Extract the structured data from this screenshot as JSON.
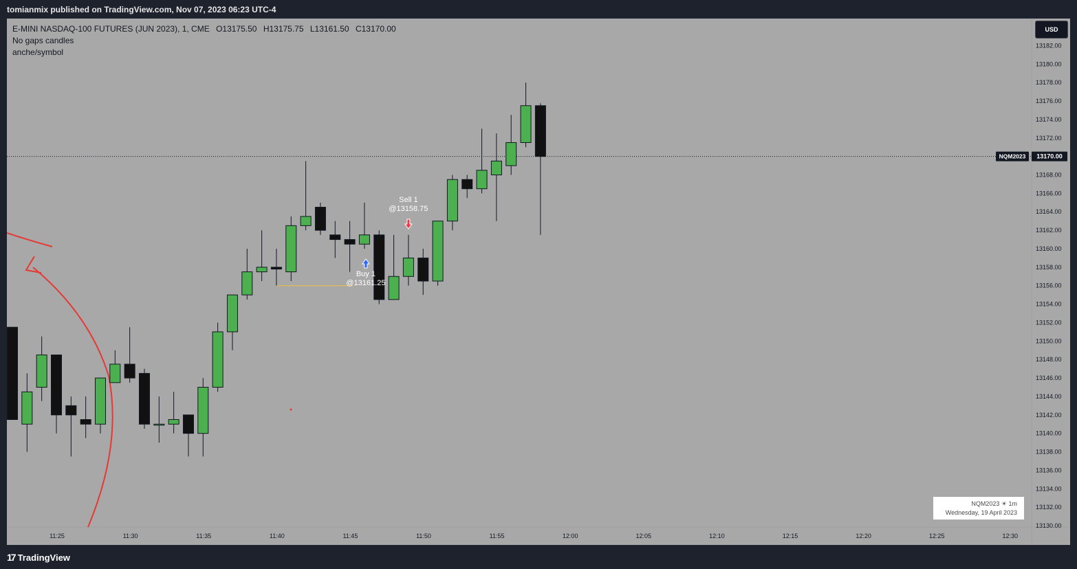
{
  "publisher_line": "tomianmix published on TradingView.com, Nov 07, 2023 06:23 UTC-4",
  "legend": {
    "symbol_line": "E-MINI NASDAQ-100 FUTURES (JUN 2023), 1, CME",
    "open": "O13175.50",
    "high": "H13175.75",
    "low": "L13161.50",
    "close": "C13170.00",
    "indicator_1": "No gaps candles",
    "indicator_2": "anche/symbol"
  },
  "currency_button": "USD",
  "last_price": {
    "symbol_tag": "NQM2023",
    "value": "13170.00",
    "price": 13170.0
  },
  "info_box": {
    "line1": "NQM2023 ☀ 1m",
    "line2": "Wednesday, 19 April 2023"
  },
  "footer_brand": "TradingView",
  "colors": {
    "background": "#1e222d",
    "plot_bg": "#a8a8a8",
    "up_candle": "#4caf50",
    "down_candle": "#111111",
    "annotation": "#e53935",
    "buy_arrow": "#2962ff",
    "sell_arrow": "#f23645",
    "position_line": "#f0c040"
  },
  "chart_data": {
    "type": "candlestick",
    "title": "E-MINI NASDAQ-100 FUTURES (JUN 2023), 1, CME",
    "xlabel": "",
    "ylabel": "",
    "ylim": [
      13130,
      13183
    ],
    "y_ticks": [
      "13130.00",
      "13132.00",
      "13134.00",
      "13136.00",
      "13138.00",
      "13140.00",
      "13142.00",
      "13144.00",
      "13146.00",
      "13148.00",
      "13150.00",
      "13152.00",
      "13154.00",
      "13156.00",
      "13158.00",
      "13160.00",
      "13162.00",
      "13164.00",
      "13166.00",
      "13168.00",
      "13170.00",
      "13172.00",
      "13174.00",
      "13176.00",
      "13178.00",
      "13180.00",
      "13182.00"
    ],
    "x_ticks": [
      "11:25",
      "11:30",
      "11:35",
      "11:40",
      "11:45",
      "11:50",
      "11:55",
      "12:00",
      "12:05",
      "12:10",
      "12:15",
      "12:20",
      "12:25",
      "12:30"
    ],
    "candles": [
      {
        "o": 13151.5,
        "h": 13151.5,
        "l": 13141.5,
        "c": 13141.5
      },
      {
        "o": 13141.0,
        "h": 13146.5,
        "l": 13138.0,
        "c": 13144.5
      },
      {
        "o": 13145.0,
        "h": 13150.5,
        "l": 13143.5,
        "c": 13148.5
      },
      {
        "o": 13148.5,
        "h": 13148.5,
        "l": 13140.0,
        "c": 13142.0
      },
      {
        "o": 13143.0,
        "h": 13144.0,
        "l": 13137.5,
        "c": 13142.0
      },
      {
        "o": 13141.5,
        "h": 13144.0,
        "l": 13139.5,
        "c": 13141.0
      },
      {
        "o": 13141.0,
        "h": 13146.0,
        "l": 13140.0,
        "c": 13146.0
      },
      {
        "o": 13145.5,
        "h": 13149.0,
        "l": 13145.5,
        "c": 13147.5
      },
      {
        "o": 13147.5,
        "h": 13151.5,
        "l": 13145.5,
        "c": 13146.0
      },
      {
        "o": 13146.5,
        "h": 13147.0,
        "l": 13140.5,
        "c": 13141.0
      },
      {
        "o": 13141.0,
        "h": 13144.0,
        "l": 13139.0,
        "c": 13141.0
      },
      {
        "o": 13141.0,
        "h": 13144.5,
        "l": 13140.0,
        "c": 13141.5
      },
      {
        "o": 13142.0,
        "h": 13142.0,
        "l": 13137.5,
        "c": 13140.0
      },
      {
        "o": 13140.0,
        "h": 13146.0,
        "l": 13137.5,
        "c": 13145.0
      },
      {
        "o": 13145.0,
        "h": 13152.0,
        "l": 13144.5,
        "c": 13151.0
      },
      {
        "o": 13151.0,
        "h": 13155.0,
        "l": 13149.0,
        "c": 13155.0
      },
      {
        "o": 13155.0,
        "h": 13160.0,
        "l": 13154.5,
        "c": 13157.5
      },
      {
        "o": 13157.5,
        "h": 13162.0,
        "l": 13156.5,
        "c": 13158.0
      },
      {
        "o": 13158.0,
        "h": 13160.0,
        "l": 13156.0,
        "c": 13157.8
      },
      {
        "o": 13157.5,
        "h": 13163.5,
        "l": 13156.5,
        "c": 13162.5
      },
      {
        "o": 13162.5,
        "h": 13169.5,
        "l": 13162.0,
        "c": 13163.5
      },
      {
        "o": 13164.5,
        "h": 13165.0,
        "l": 13161.5,
        "c": 13162.0
      },
      {
        "o": 13161.5,
        "h": 13163.0,
        "l": 13159.0,
        "c": 13161.0
      },
      {
        "o": 13161.0,
        "h": 13163.0,
        "l": 13157.5,
        "c": 13160.5
      },
      {
        "o": 13160.5,
        "h": 13165.0,
        "l": 13160.0,
        "c": 13161.5
      },
      {
        "o": 13161.5,
        "h": 13162.0,
        "l": 13154.0,
        "c": 13154.5
      },
      {
        "o": 13154.5,
        "h": 13161.5,
        "l": 13154.5,
        "c": 13157.0
      },
      {
        "o": 13157.0,
        "h": 13161.5,
        "l": 13156.0,
        "c": 13159.0
      },
      {
        "o": 13159.0,
        "h": 13160.0,
        "l": 13155.0,
        "c": 13156.5
      },
      {
        "o": 13156.5,
        "h": 13163.0,
        "l": 13156.0,
        "c": 13163.0
      },
      {
        "o": 13163.0,
        "h": 13168.0,
        "l": 13162.0,
        "c": 13167.5
      },
      {
        "o": 13167.5,
        "h": 13168.0,
        "l": 13165.5,
        "c": 13166.5
      },
      {
        "o": 13166.5,
        "h": 13173.0,
        "l": 13166.0,
        "c": 13168.5
      },
      {
        "o": 13168.0,
        "h": 13172.5,
        "l": 13163.0,
        "c": 13169.5
      },
      {
        "o": 13169.0,
        "h": 13174.5,
        "l": 13168.0,
        "c": 13171.5
      },
      {
        "o": 13171.5,
        "h": 13178.0,
        "l": 13171.0,
        "c": 13175.5
      },
      {
        "o": 13175.5,
        "h": 13175.75,
        "l": 13161.5,
        "c": 13170.0
      }
    ],
    "trades": [
      {
        "label": "Buy 1",
        "price_label": "@13161.25",
        "side": "buy",
        "candle_index": 24
      },
      {
        "label": "Sell 1",
        "price_label": "@13158.75",
        "side": "sell",
        "candle_index": 27
      }
    ],
    "position_line_price": 13156.0,
    "grid": false,
    "legend_position": "top-left"
  }
}
